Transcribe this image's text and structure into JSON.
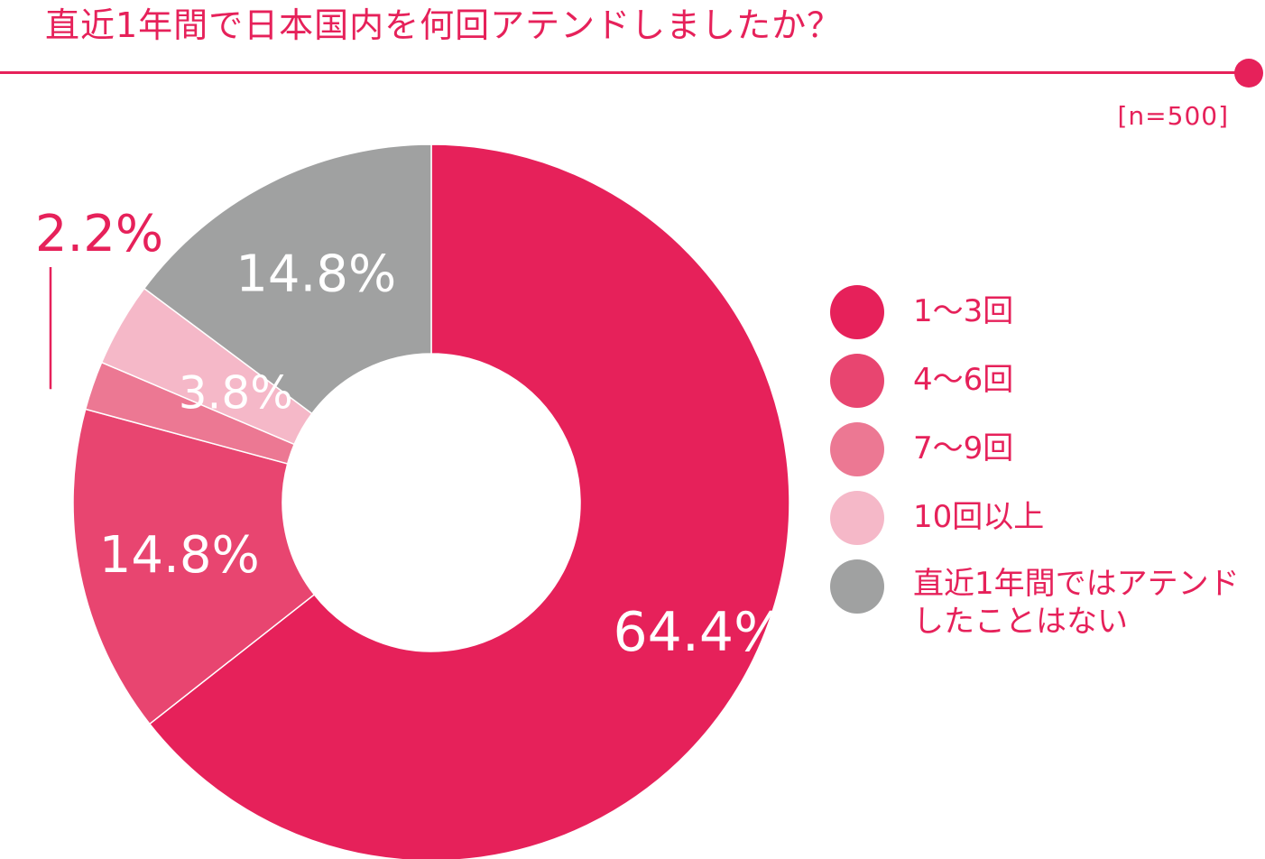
{
  "header": {
    "title": "直近1年間で日本国内を何回アテンドしましたか？",
    "sample_size": "[n=500]"
  },
  "colors": {
    "accent": "#e6215a",
    "rule": "#e6215a"
  },
  "chart_data": {
    "type": "pie",
    "donut": true,
    "title": "直近1年間で日本国内を何回アテンドしましたか？",
    "legend_position": "right",
    "slices": [
      {
        "label": "1〜3回",
        "value": 64.4,
        "display": "64.4%",
        "color": "#e6215a",
        "label_color": "#ffffff"
      },
      {
        "label": "4〜6回",
        "value": 14.8,
        "display": "14.8%",
        "color": "#e84570",
        "label_color": "#ffffff"
      },
      {
        "label": "7〜9回",
        "value": 2.2,
        "display": "2.2%",
        "color": "#ec7893",
        "label_color": "#e6215a",
        "callout": true
      },
      {
        "label": "10回以上",
        "value": 3.8,
        "display": "3.8%",
        "color": "#f5b8c8",
        "label_color": "#ffffff"
      },
      {
        "label": "直近1年間ではアテンドしたことはない",
        "value": 14.8,
        "display": "14.8%",
        "color": "#a0a1a1",
        "label_color": "#ffffff"
      }
    ]
  }
}
